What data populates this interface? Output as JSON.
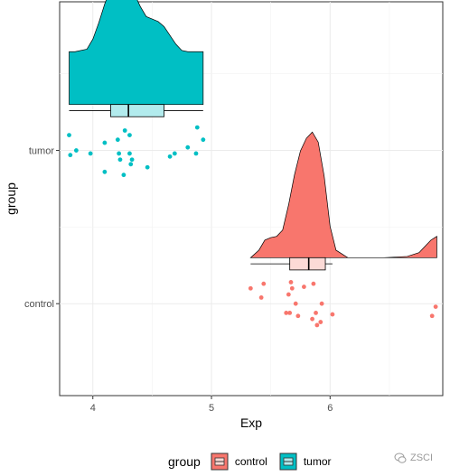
{
  "chart_data": {
    "type": "raincloud",
    "xlabel": "Exp",
    "ylabel": "group",
    "xlim": [
      3.72,
      6.95
    ],
    "x_ticks": [
      4,
      5,
      6
    ],
    "categories": [
      "control",
      "tumor"
    ],
    "grid": true,
    "legend": {
      "title": "group",
      "position": "bottom",
      "entries": [
        {
          "label": "control",
          "fill": "#F8766D",
          "light": "#FCDAD6"
        },
        {
          "label": "tumor",
          "fill": "#00BFC4",
          "light": "#B2EBED"
        }
      ]
    },
    "series": [
      {
        "name": "tumor",
        "color": "#00BFC4",
        "light": "#B2EBED",
        "box": {
          "min": 3.8,
          "q1": 4.15,
          "median": 4.3,
          "q3": 4.6,
          "max": 4.93
        },
        "density": [
          [
            3.8,
            0.42
          ],
          [
            3.85,
            0.42
          ],
          [
            3.95,
            0.44
          ],
          [
            4.0,
            0.52
          ],
          [
            4.05,
            0.65
          ],
          [
            4.1,
            0.8
          ],
          [
            4.15,
            0.92
          ],
          [
            4.2,
            0.99
          ],
          [
            4.25,
            1.0
          ],
          [
            4.3,
            0.96
          ],
          [
            4.35,
            0.88
          ],
          [
            4.4,
            0.78
          ],
          [
            4.45,
            0.7
          ],
          [
            4.5,
            0.68
          ],
          [
            4.55,
            0.66
          ],
          [
            4.6,
            0.62
          ],
          [
            4.65,
            0.55
          ],
          [
            4.7,
            0.48
          ],
          [
            4.75,
            0.43
          ],
          [
            4.8,
            0.42
          ],
          [
            4.9,
            0.42
          ],
          [
            4.93,
            0.42
          ]
        ],
        "points": [
          [
            3.8,
            1.1
          ],
          [
            3.81,
            0.97
          ],
          [
            3.86,
            1.0
          ],
          [
            3.98,
            0.98
          ],
          [
            4.1,
            0.86
          ],
          [
            4.1,
            1.05
          ],
          [
            4.21,
            1.07
          ],
          [
            4.22,
            0.98
          ],
          [
            4.23,
            0.94
          ],
          [
            4.26,
            0.84
          ],
          [
            4.27,
            1.13
          ],
          [
            4.31,
            1.1
          ],
          [
            4.31,
            0.98
          ],
          [
            4.32,
            0.91
          ],
          [
            4.33,
            0.94
          ],
          [
            4.46,
            0.89
          ],
          [
            4.65,
            0.96
          ],
          [
            4.69,
            0.98
          ],
          [
            4.8,
            1.02
          ],
          [
            4.87,
            0.98
          ],
          [
            4.88,
            1.15
          ],
          [
            4.93,
            1.07
          ]
        ]
      },
      {
        "name": "control",
        "color": "#F8766D",
        "light": "#FCDAD6",
        "box": {
          "min": 5.33,
          "q1": 5.66,
          "median": 5.82,
          "q3": 5.96,
          "max": 6.02
        },
        "density": [
          [
            5.33,
            0.0
          ],
          [
            5.4,
            0.06
          ],
          [
            5.45,
            0.14
          ],
          [
            5.5,
            0.16
          ],
          [
            5.55,
            0.17
          ],
          [
            5.6,
            0.22
          ],
          [
            5.65,
            0.42
          ],
          [
            5.7,
            0.66
          ],
          [
            5.75,
            0.85
          ],
          [
            5.8,
            0.95
          ],
          [
            5.85,
            1.0
          ],
          [
            5.9,
            0.92
          ],
          [
            5.95,
            0.65
          ],
          [
            6.0,
            0.25
          ],
          [
            6.05,
            0.06
          ],
          [
            6.15,
            0.0
          ],
          [
            6.3,
            0.0
          ],
          [
            6.45,
            0.0
          ],
          [
            6.65,
            0.01
          ],
          [
            6.75,
            0.04
          ],
          [
            6.8,
            0.09
          ],
          [
            6.85,
            0.14
          ],
          [
            6.9,
            0.17
          ]
        ],
        "points": [
          [
            5.33,
            1.1
          ],
          [
            5.42,
            1.04
          ],
          [
            5.44,
            1.13
          ],
          [
            5.63,
            0.94
          ],
          [
            5.65,
            1.06
          ],
          [
            5.66,
            0.94
          ],
          [
            5.67,
            1.14
          ],
          [
            5.68,
            1.1
          ],
          [
            5.71,
            1.0
          ],
          [
            5.73,
            0.92
          ],
          [
            5.78,
            1.11
          ],
          [
            5.85,
            0.9
          ],
          [
            5.86,
            1.13
          ],
          [
            5.88,
            0.94
          ],
          [
            5.89,
            0.86
          ],
          [
            5.92,
            0.88
          ],
          [
            5.93,
            1.0
          ],
          [
            6.02,
            0.93
          ],
          [
            6.86,
            0.92
          ],
          [
            6.89,
            0.98
          ]
        ]
      }
    ],
    "watermark": "ZSCI"
  }
}
